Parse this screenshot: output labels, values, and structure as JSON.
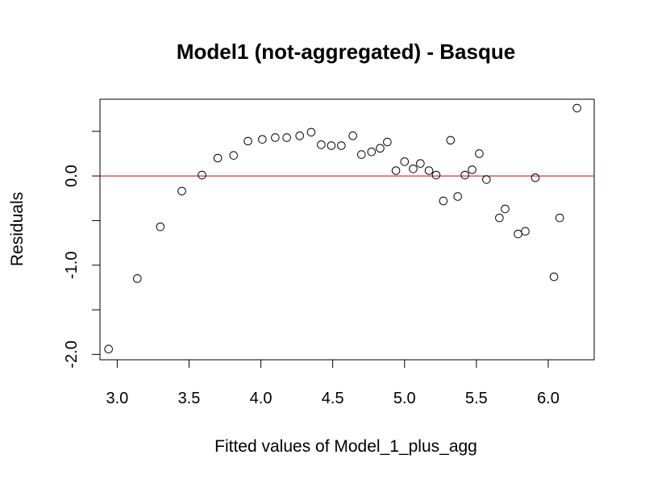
{
  "chart_data": {
    "type": "scatter",
    "title": "Model1 (not-aggregated) - Basque",
    "xlabel": "Fitted values of Model_1_plus_agg",
    "ylabel": "Residuals",
    "xlim": [
      2.88,
      6.32
    ],
    "ylim": [
      -2.06,
      0.86
    ],
    "x_ticks": [
      3.0,
      3.5,
      4.0,
      4.5,
      5.0,
      5.5,
      6.0
    ],
    "x_tick_labels": [
      "3.0",
      "3.5",
      "4.0",
      "4.5",
      "5.0",
      "5.5",
      "6.0"
    ],
    "y_ticks": [
      -2.0,
      -1.5,
      -1.0,
      -0.5,
      0.0,
      0.5
    ],
    "y_tick_labels": [
      "-2.0",
      "",
      "-1.0",
      "",
      "0.0",
      ""
    ],
    "reference_line": {
      "y": 0,
      "color": "#cc0000"
    },
    "grid": false,
    "series": [
      {
        "marker": "open-circle",
        "points": [
          {
            "x": 2.94,
            "y": -1.94
          },
          {
            "x": 3.14,
            "y": -1.15
          },
          {
            "x": 3.3,
            "y": -0.57
          },
          {
            "x": 3.45,
            "y": -0.17
          },
          {
            "x": 3.59,
            "y": 0.01
          },
          {
            "x": 3.7,
            "y": 0.2
          },
          {
            "x": 3.81,
            "y": 0.23
          },
          {
            "x": 3.91,
            "y": 0.39
          },
          {
            "x": 4.01,
            "y": 0.41
          },
          {
            "x": 4.1,
            "y": 0.43
          },
          {
            "x": 4.18,
            "y": 0.43
          },
          {
            "x": 4.27,
            "y": 0.45
          },
          {
            "x": 4.35,
            "y": 0.49
          },
          {
            "x": 4.42,
            "y": 0.35
          },
          {
            "x": 4.49,
            "y": 0.34
          },
          {
            "x": 4.56,
            "y": 0.34
          },
          {
            "x": 4.64,
            "y": 0.45
          },
          {
            "x": 4.7,
            "y": 0.24
          },
          {
            "x": 4.77,
            "y": 0.27
          },
          {
            "x": 4.83,
            "y": 0.31
          },
          {
            "x": 4.88,
            "y": 0.38
          },
          {
            "x": 4.94,
            "y": 0.06
          },
          {
            "x": 5.0,
            "y": 0.16
          },
          {
            "x": 5.06,
            "y": 0.08
          },
          {
            "x": 5.11,
            "y": 0.14
          },
          {
            "x": 5.17,
            "y": 0.06
          },
          {
            "x": 5.22,
            "y": 0.01
          },
          {
            "x": 5.27,
            "y": -0.28
          },
          {
            "x": 5.32,
            "y": 0.4
          },
          {
            "x": 5.37,
            "y": -0.23
          },
          {
            "x": 5.42,
            "y": 0.01
          },
          {
            "x": 5.47,
            "y": 0.07
          },
          {
            "x": 5.52,
            "y": 0.25
          },
          {
            "x": 5.57,
            "y": -0.04
          },
          {
            "x": 5.66,
            "y": -0.47
          },
          {
            "x": 5.7,
            "y": -0.37
          },
          {
            "x": 5.79,
            "y": -0.65
          },
          {
            "x": 5.84,
            "y": -0.62
          },
          {
            "x": 5.91,
            "y": -0.02
          },
          {
            "x": 6.04,
            "y": -1.13
          },
          {
            "x": 6.08,
            "y": -0.47
          },
          {
            "x": 6.2,
            "y": 0.76
          }
        ]
      }
    ]
  }
}
